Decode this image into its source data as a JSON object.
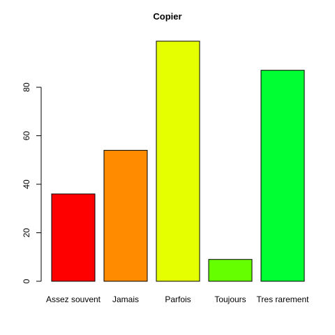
{
  "chart_data": {
    "type": "bar",
    "title": "Copier",
    "xlabel": "",
    "ylabel": "",
    "categories": [
      "Assez souvent",
      "Jamais",
      "Parfois",
      "Toujours",
      "Tres rarement"
    ],
    "values": [
      36,
      54,
      99,
      9,
      87
    ],
    "colors": [
      "#FF0000",
      "#FF8C00",
      "#E6FF00",
      "#66FF00",
      "#00FF33"
    ],
    "ylim": [
      0,
      99
    ],
    "yticks": [
      0,
      20,
      40,
      60,
      80
    ],
    "grid": false,
    "legend": "none"
  }
}
